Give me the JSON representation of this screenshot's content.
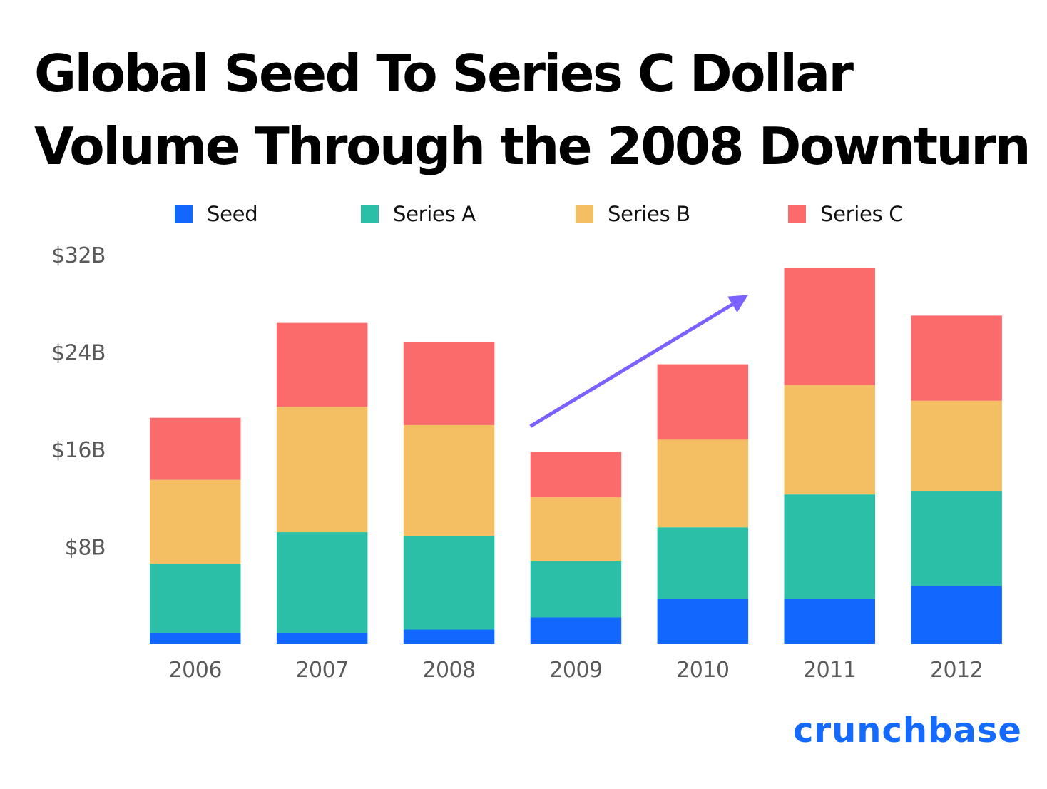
{
  "chart_data": {
    "type": "bar",
    "stacked": true,
    "title": "Global Seed To Series C Dollar Volume Through the 2008 Downturn",
    "title_lines": [
      "Global Seed To Series C Dollar",
      "Volume Through the 2008 Downturn"
    ],
    "xlabel": "",
    "ylabel": "",
    "categories": [
      "2006",
      "2007",
      "2008",
      "2009",
      "2010",
      "2011",
      "2012"
    ],
    "series": [
      {
        "name": "Seed",
        "color": "#1267ff",
        "values": [
          0.9,
          0.9,
          1.2,
          2.2,
          3.7,
          3.7,
          4.8
        ]
      },
      {
        "name": "Series A",
        "color": "#2abfa6",
        "values": [
          5.7,
          8.3,
          7.7,
          4.6,
          5.9,
          8.6,
          7.8
        ]
      },
      {
        "name": "Series B",
        "color": "#f4bf62",
        "values": [
          6.9,
          10.3,
          9.1,
          5.3,
          7.2,
          9.0,
          7.4
        ]
      },
      {
        "name": "Series C",
        "color": "#fb6b6b",
        "values": [
          5.1,
          6.9,
          6.8,
          3.7,
          6.2,
          9.6,
          7.0
        ]
      }
    ],
    "y_unit": "billions USD",
    "ylim": [
      0,
      32
    ],
    "yticks": [
      8,
      16,
      24,
      32
    ],
    "ytick_labels": [
      "$8B",
      "$16B",
      "$24B",
      "$32B"
    ],
    "grid": false,
    "legend_position": "top",
    "annotations": [
      {
        "type": "arrow",
        "color": "#7b61ff",
        "from": {
          "category": "2009",
          "value": 17.9
        },
        "to": {
          "category": "2010",
          "value": 28.7
        },
        "meaning": "recovery trend after 2009"
      }
    ]
  },
  "brand": {
    "logo_text": "crunchbase",
    "color": "#146aff"
  }
}
